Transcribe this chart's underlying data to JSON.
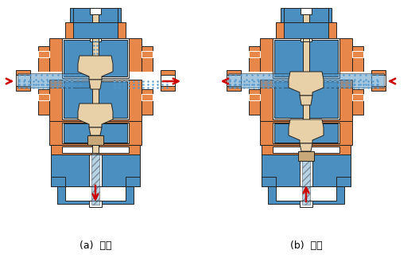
{
  "label_a": "(a)  分流",
  "label_b": "(b)  合流",
  "bg_color": "#ffffff",
  "orange": "#E8874A",
  "blue": "#4A8FC0",
  "tan": "#C8A878",
  "light_tan": "#E8D0A8",
  "dark_tan": "#B89868",
  "arrow_red": "#CC0000",
  "blue_dot": "#5599CC",
  "outline": "#222222",
  "fig_width": 5.22,
  "fig_height": 3.29,
  "dpi": 100
}
